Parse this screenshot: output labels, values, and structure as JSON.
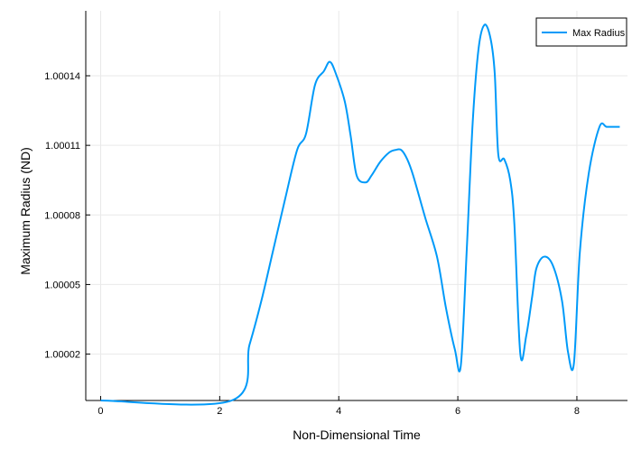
{
  "chart_data": {
    "type": "line",
    "xlabel": "Non-Dimensional Time",
    "ylabel": "Maximum Radius (ND)",
    "xlim": [
      -0.25,
      8.85
    ],
    "ylim": [
      1.0,
      1.000168
    ],
    "x_ticks": [
      0,
      2,
      4,
      6,
      8
    ],
    "x_tick_labels": [
      "0",
      "2",
      "4",
      "6",
      "8"
    ],
    "y_ticks": [
      1.00002,
      1.00005,
      1.00008,
      1.00011,
      1.00014
    ],
    "y_tick_labels": [
      "1.00002",
      "1.00005",
      "1.00008",
      "1.00011",
      "1.00014"
    ],
    "grid": true,
    "legend_position": "top-right",
    "colors": {
      "series": "#009af9",
      "axis": "#000000",
      "grid": "#e9e9e9"
    },
    "series": [
      {
        "name": "Max Radius",
        "x": [
          0.0,
          2.2,
          2.5,
          2.7,
          2.9,
          3.1,
          3.3,
          3.45,
          3.6,
          3.75,
          3.85,
          3.95,
          4.1,
          4.2,
          4.3,
          4.45,
          4.55,
          4.7,
          4.85,
          4.95,
          5.05,
          5.15,
          5.25,
          5.45,
          5.65,
          5.8,
          5.95,
          6.05,
          6.15,
          6.25,
          6.35,
          6.45,
          6.55,
          6.62,
          6.68,
          6.78,
          6.88,
          6.95,
          7.05,
          7.15,
          7.25,
          7.32,
          7.45,
          7.6,
          7.75,
          7.85,
          7.95,
          8.05,
          8.2,
          8.38,
          8.5,
          8.65,
          8.72
        ],
        "y": [
          1.0,
          1.0,
          1.000024,
          1.000043,
          1.000065,
          1.000087,
          1.000108,
          1.000115,
          1.000136,
          1.000142,
          1.000146,
          1.000141,
          1.000129,
          1.000114,
          1.000097,
          1.000094,
          1.000097,
          1.000103,
          1.000107,
          1.000108,
          1.000108,
          1.000104,
          1.000097,
          1.000079,
          1.000062,
          1.00004,
          1.000022,
          1.000015,
          1.000065,
          1.00012,
          1.000152,
          1.000162,
          1.000156,
          1.000141,
          1.000106,
          1.000104,
          1.000095,
          1.000076,
          1.00002,
          1.000028,
          1.000045,
          1.000057,
          1.000062,
          1.000058,
          1.000043,
          1.000021,
          1.000016,
          1.000064,
          1.000098,
          1.000118,
          1.000118,
          1.000118,
          1.000118
        ]
      }
    ]
  }
}
